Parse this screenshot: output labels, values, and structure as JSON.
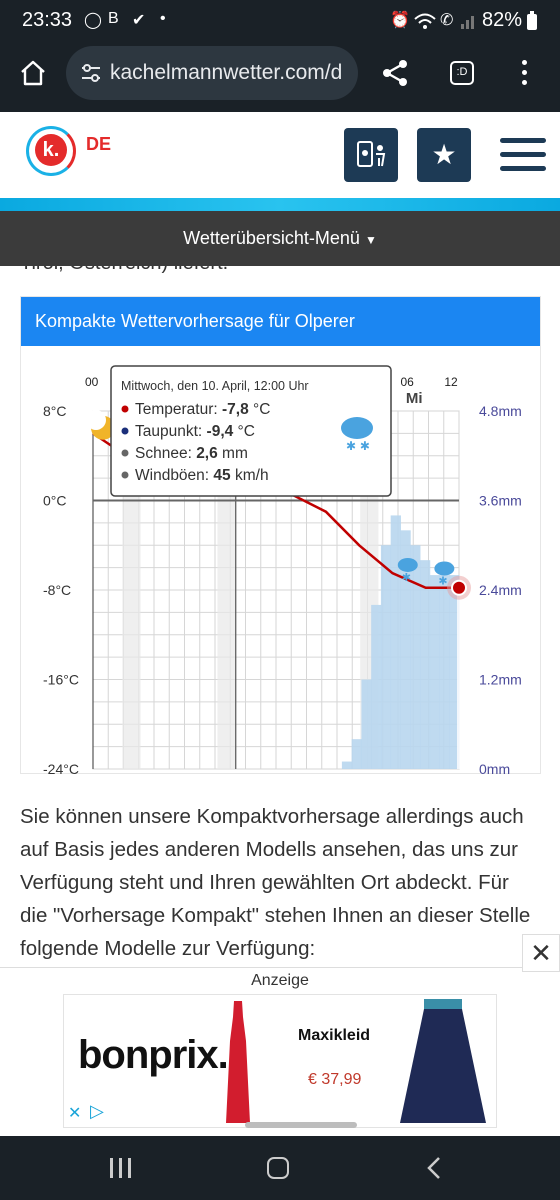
{
  "status": {
    "time": "23:33",
    "battery": "82%",
    "icons": [
      "circle-icon",
      "b-icon",
      "check-icon",
      "dot-icon",
      "alarm-icon",
      "wifi-icon",
      "call-icon",
      "signal-icon",
      "battery-icon"
    ]
  },
  "browser": {
    "url": "kachelmannwetter.com/d",
    "icons": [
      "home-icon",
      "site-settings-icon",
      "share-icon",
      "tab-switcher-icon",
      "menu-icon"
    ],
    "tab_label": ":D"
  },
  "site": {
    "logo_text": "k.",
    "lang": "DE",
    "accent": "#1b86f2",
    "dark": "#1d3a55"
  },
  "menu": {
    "label": "Wetterübersicht-Menü"
  },
  "cut_text": "Tirol, Österreich) liefert.",
  "card": {
    "title": "Kompakte Wettervorhersage für Olperer"
  },
  "chart_data": {
    "type": "line",
    "title": "",
    "x_labels": [
      "00",
      "06",
      "12"
    ],
    "day_label": "Mi",
    "y_left_ticks": [
      "8°C",
      "0°C",
      "-8°C",
      "-16°C",
      "-24°C"
    ],
    "y_right_ticks": [
      "4.8mm",
      "3.6mm",
      "2.4mm",
      "1.2mm",
      "0mm"
    ],
    "ylim_left": [
      -24,
      8
    ],
    "ylim_right": [
      0,
      4.8
    ],
    "series": [
      {
        "name": "Temperatur",
        "color": "#c00000",
        "values": [
          6,
          4,
          3,
          2.5,
          2,
          1.5,
          0.5,
          -1,
          -4,
          -6.5,
          -7.8,
          -7.8
        ]
      },
      {
        "name": "Schnee",
        "color": "#b8d6ee",
        "values": [
          0.1,
          0.4,
          1.2,
          2.2,
          3.0,
          3.4,
          3.2,
          3.0,
          2.8,
          2.6,
          2.6,
          2.6
        ]
      }
    ],
    "tooltip": {
      "title": "Mittwoch, den 10. April, 12:00 Uhr",
      "rows": [
        {
          "label": "Temperatur: ",
          "value": "-7,8",
          "unit": " °C",
          "color": "#c00000"
        },
        {
          "label": "Taupunkt: ",
          "value": "-9,4",
          "unit": " °C",
          "color": "#1b2f7a"
        },
        {
          "label": "Schnee: ",
          "value": "2,6",
          "unit": " mm",
          "color": "#666666"
        },
        {
          "label": "Windböen: ",
          "value": "45",
          "unit": " km/h",
          "color": "#666666"
        }
      ]
    }
  },
  "paragraph": "Sie können unsere Kompaktvorhersage allerdings auch auf Basis jedes anderen Modells ansehen, das uns zur Verfügung steht und Ihren gewählten Ort abdeckt. Für die \"Vorhersage Kompakt\" stehen Ihnen an dieser Stelle folgende Modelle zur Verfügung:",
  "ad": {
    "label": "Anzeige",
    "brand": "bonprix.",
    "product": "Maxikleid",
    "price": "€ 37,99",
    "price_color": "#c0392b"
  }
}
